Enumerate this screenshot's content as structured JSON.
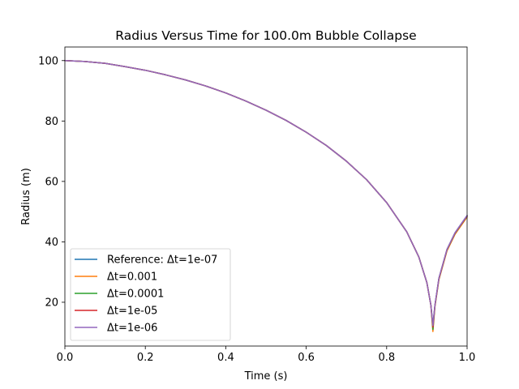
{
  "chart_data": {
    "type": "line",
    "title": "Radius Versus Time for 100.0m Bubble Collapse",
    "xlabel": "Time (s)",
    "ylabel": "Radius (m)",
    "xlim": [
      0.0,
      1.0
    ],
    "ylim": [
      5.5,
      104.5
    ],
    "xticks": [
      0.0,
      0.2,
      0.4,
      0.6,
      0.8,
      1.0
    ],
    "xtick_labels": [
      "0.0",
      "0.2",
      "0.4",
      "0.6",
      "0.8",
      "1.0"
    ],
    "yticks": [
      20,
      40,
      60,
      80,
      100
    ],
    "ytick_labels": [
      "20",
      "40",
      "60",
      "80",
      "100"
    ],
    "grid": false,
    "legend_position": "lower-left",
    "series": [
      {
        "name": "Reference: Δt=1e-07",
        "color": "#1f77b4",
        "x": [
          0.0,
          0.05,
          0.1,
          0.15,
          0.2,
          0.25,
          0.3,
          0.35,
          0.4,
          0.45,
          0.5,
          0.55,
          0.6,
          0.65,
          0.7,
          0.75,
          0.8,
          0.85,
          0.88,
          0.9,
          0.91,
          0.915,
          0.92,
          0.93,
          0.95,
          0.97,
          1.0
        ],
        "y": [
          100,
          99.7,
          99.1,
          98.0,
          96.8,
          95.3,
          93.6,
          91.6,
          89.3,
          86.6,
          83.6,
          80.2,
          76.3,
          71.9,
          66.7,
          60.6,
          53.0,
          43.3,
          35.0,
          26.5,
          19.0,
          12.5,
          19.0,
          28.0,
          37.5,
          43.0,
          48.7
        ]
      },
      {
        "name": "Δt=0.001",
        "color": "#ff7f0e",
        "x": [
          0.0,
          0.05,
          0.1,
          0.15,
          0.2,
          0.25,
          0.3,
          0.35,
          0.4,
          0.45,
          0.5,
          0.55,
          0.6,
          0.65,
          0.7,
          0.75,
          0.8,
          0.85,
          0.88,
          0.9,
          0.91,
          0.915,
          0.92,
          0.93,
          0.95,
          0.97,
          1.0
        ],
        "y": [
          100,
          99.7,
          99.1,
          98.0,
          96.8,
          95.3,
          93.6,
          91.6,
          89.3,
          86.6,
          83.6,
          80.2,
          76.3,
          71.9,
          66.7,
          60.6,
          53.0,
          43.3,
          35.0,
          26.5,
          19.0,
          10.3,
          18.5,
          27.5,
          37.0,
          42.5,
          48.2
        ]
      },
      {
        "name": "Δt=0.0001",
        "color": "#2ca02c",
        "x": [
          0.0,
          0.05,
          0.1,
          0.15,
          0.2,
          0.25,
          0.3,
          0.35,
          0.4,
          0.45,
          0.5,
          0.55,
          0.6,
          0.65,
          0.7,
          0.75,
          0.8,
          0.85,
          0.88,
          0.9,
          0.91,
          0.915,
          0.92,
          0.93,
          0.95,
          0.97,
          1.0
        ],
        "y": [
          100,
          99.7,
          99.1,
          98.0,
          96.8,
          95.3,
          93.6,
          91.6,
          89.3,
          86.6,
          83.6,
          80.2,
          76.3,
          71.9,
          66.7,
          60.6,
          53.0,
          43.3,
          35.0,
          26.5,
          19.0,
          11.0,
          18.8,
          27.8,
          37.3,
          42.8,
          48.5
        ]
      },
      {
        "name": "Δt=1e-05",
        "color": "#d62728",
        "x": [
          0.0,
          0.05,
          0.1,
          0.15,
          0.2,
          0.25,
          0.3,
          0.35,
          0.4,
          0.45,
          0.5,
          0.55,
          0.6,
          0.65,
          0.7,
          0.75,
          0.8,
          0.85,
          0.88,
          0.9,
          0.91,
          0.915,
          0.92,
          0.93,
          0.95,
          0.97,
          1.0
        ],
        "y": [
          100,
          99.7,
          99.1,
          98.0,
          96.8,
          95.3,
          93.6,
          91.6,
          89.3,
          86.6,
          83.6,
          80.2,
          76.3,
          71.9,
          66.7,
          60.6,
          53.0,
          43.3,
          35.0,
          26.5,
          19.0,
          11.8,
          18.9,
          27.9,
          37.4,
          42.9,
          48.6
        ]
      },
      {
        "name": "Δt=1e-06",
        "color": "#9467bd",
        "x": [
          0.0,
          0.05,
          0.1,
          0.15,
          0.2,
          0.25,
          0.3,
          0.35,
          0.4,
          0.45,
          0.5,
          0.55,
          0.6,
          0.65,
          0.7,
          0.75,
          0.8,
          0.85,
          0.88,
          0.9,
          0.91,
          0.915,
          0.92,
          0.93,
          0.95,
          0.97,
          1.0
        ],
        "y": [
          100,
          99.7,
          99.1,
          98.0,
          96.8,
          95.3,
          93.6,
          91.6,
          89.3,
          86.6,
          83.6,
          80.2,
          76.3,
          71.9,
          66.7,
          60.6,
          53.0,
          43.3,
          35.0,
          26.5,
          19.0,
          12.3,
          19.0,
          28.0,
          37.5,
          43.0,
          48.7
        ]
      }
    ]
  }
}
